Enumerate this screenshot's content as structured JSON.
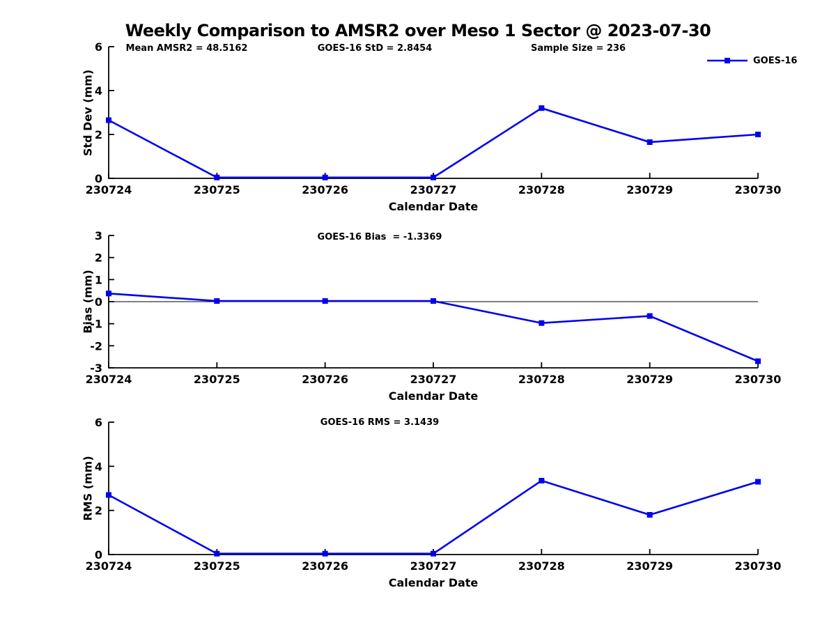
{
  "title": "Weekly Comparison to AMSR2 over Meso 1 Sector @ 2023-07-30",
  "colors": {
    "line": "#0000EE",
    "axis": "#000000",
    "background": "#FFFFFF"
  },
  "chart_data": [
    {
      "type": "line",
      "ylabel": "Std Dev (mm)",
      "xlabel": "Calendar Date",
      "categories": [
        "230724",
        "230725",
        "230726",
        "230727",
        "230728",
        "230729",
        "230730"
      ],
      "series": [
        {
          "name": "GOES-16",
          "marker": "square",
          "values": [
            2.65,
            0.04,
            0.04,
            0.04,
            3.2,
            1.65,
            2.0
          ]
        }
      ],
      "ylim": [
        0,
        6
      ],
      "yticks": [
        0,
        2,
        4,
        6
      ],
      "grid": false,
      "zero_line": false,
      "annotations": [
        "Mean AMSR2 = 48.5162",
        "GOES-16 StD = 2.8454",
        "Sample Size = 236"
      ],
      "legend": {
        "label": "GOES-16",
        "position": "top-right"
      }
    },
    {
      "type": "line",
      "ylabel": "Bias (mm)",
      "xlabel": "Calendar Date",
      "categories": [
        "230724",
        "230725",
        "230726",
        "230727",
        "230728",
        "230729",
        "230730"
      ],
      "series": [
        {
          "name": "GOES-16",
          "marker": "square",
          "values": [
            0.37,
            0.03,
            0.03,
            0.03,
            -0.97,
            -0.65,
            -2.7
          ]
        }
      ],
      "ylim": [
        -3,
        3
      ],
      "yticks": [
        -3,
        -2,
        -1,
        0,
        1,
        2,
        3
      ],
      "grid": false,
      "zero_line": true,
      "annotations": [
        "GOES-16 Bias  = -1.3369"
      ]
    },
    {
      "type": "line",
      "ylabel": "RMS (mm)",
      "xlabel": "Calendar Date",
      "categories": [
        "230724",
        "230725",
        "230726",
        "230727",
        "230728",
        "230729",
        "230730"
      ],
      "series": [
        {
          "name": "GOES-16",
          "marker": "square",
          "values": [
            2.7,
            0.04,
            0.04,
            0.04,
            3.35,
            1.8,
            3.3
          ]
        }
      ],
      "ylim": [
        0,
        6
      ],
      "yticks": [
        0,
        2,
        4,
        6
      ],
      "grid": false,
      "zero_line": false,
      "annotations": [
        "GOES-16 RMS = 3.1439"
      ]
    }
  ]
}
